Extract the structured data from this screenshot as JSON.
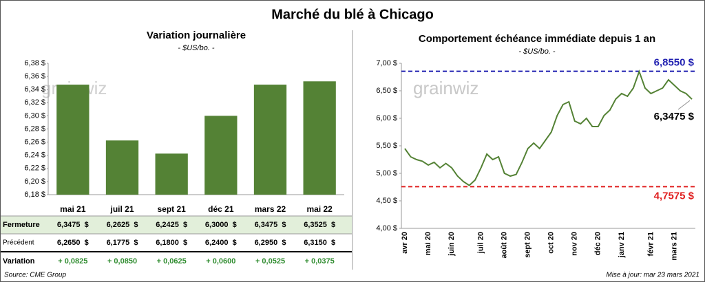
{
  "title": "Marché du blé à Chicago",
  "watermark": "grainwiz",
  "chart_data": [
    {
      "type": "bar",
      "title": "Variation journalière",
      "subtitle": "- $US/bo. -",
      "color": "#548235",
      "categories": [
        "mai 21",
        "juil 21",
        "sept 21",
        "déc 21",
        "mars 22",
        "mai 22"
      ],
      "values": [
        6.3475,
        6.2625,
        6.2425,
        6.3,
        6.3475,
        6.3525
      ],
      "ylim": [
        6.18,
        6.38
      ],
      "yticks": [
        {
          "value": 6.18,
          "label": "6,18 $"
        },
        {
          "value": 6.2,
          "label": "6,20 $"
        },
        {
          "value": 6.22,
          "label": "6,22 $"
        },
        {
          "value": 6.24,
          "label": "6,24 $"
        },
        {
          "value": 6.26,
          "label": "6,26 $"
        },
        {
          "value": 6.28,
          "label": "6,28 $"
        },
        {
          "value": 6.3,
          "label": "6,30 $"
        },
        {
          "value": 6.32,
          "label": "6,32 $"
        },
        {
          "value": 6.34,
          "label": "6,34 $"
        },
        {
          "value": 6.36,
          "label": "6,36 $"
        },
        {
          "value": 6.38,
          "label": "6,38 $"
        }
      ]
    },
    {
      "type": "line",
      "title": "Comportement  échéance immédiate depuis 1 an",
      "subtitle": "- $US/bo. -",
      "color": "#548235",
      "categories": [
        "avr 20",
        null,
        null,
        null,
        "mai 20",
        null,
        null,
        null,
        "juin 20",
        null,
        null,
        null,
        null,
        "juil 20",
        null,
        null,
        null,
        "août 20",
        null,
        null,
        null,
        "sept 20",
        null,
        null,
        null,
        "oct 20",
        null,
        null,
        null,
        "nov 20",
        null,
        null,
        null,
        "déc 20",
        null,
        null,
        null,
        "janv 21",
        null,
        null,
        null,
        null,
        "févr 21",
        null,
        null,
        null,
        "mars 21",
        null,
        null,
        null
      ],
      "values": [
        5.45,
        5.3,
        5.25,
        5.22,
        5.15,
        5.2,
        5.1,
        5.18,
        5.1,
        4.95,
        4.85,
        4.78,
        4.88,
        5.1,
        5.35,
        5.25,
        5.3,
        5.0,
        4.95,
        4.98,
        5.2,
        5.45,
        5.55,
        5.45,
        5.6,
        5.75,
        6.05,
        6.25,
        6.3,
        5.95,
        5.9,
        6.0,
        5.85,
        5.85,
        6.05,
        6.15,
        6.35,
        6.45,
        6.4,
        6.55,
        6.85,
        6.55,
        6.45,
        6.5,
        6.55,
        6.7,
        6.6,
        6.5,
        6.45,
        6.3475
      ],
      "ylim": [
        4.0,
        7.0
      ],
      "yticks": [
        {
          "value": 4.0,
          "label": "4,00 $"
        },
        {
          "value": 4.5,
          "label": "4,50 $"
        },
        {
          "value": 5.0,
          "label": "5,00 $"
        },
        {
          "value": 5.5,
          "label": "5,50 $"
        },
        {
          "value": 6.0,
          "label": "6,00 $"
        },
        {
          "value": 6.5,
          "label": "6,50 $"
        },
        {
          "value": 7.0,
          "label": "7,00 $"
        }
      ],
      "annotations": [
        {
          "value": 6.855,
          "label": "6,8550 $",
          "color": "#1f1fb0"
        },
        {
          "value": 4.7575,
          "label": "4,7575 $",
          "color": "#e02020"
        }
      ],
      "last_label": "6,3475 $"
    }
  ],
  "table": {
    "rows": [
      {
        "label": "Fermeture",
        "cells": [
          "6,3475  $",
          "6,2625  $",
          "6,2425  $",
          "6,3000  $",
          "6,3475  $",
          "6,3525  $"
        ]
      },
      {
        "label": "Précédent",
        "cells": [
          "6,2650  $",
          "6,1775  $",
          "6,1800  $",
          "6,2400  $",
          "6,2950  $",
          "6,3150  $"
        ]
      },
      {
        "label": "Variation",
        "cells": [
          "+ 0,0825",
          "+ 0,0850",
          "+ 0,0625",
          "+ 0,0600",
          "+ 0,0525",
          "+ 0,0375"
        ]
      }
    ]
  },
  "footer": {
    "source": "Source: CME Group",
    "updated": "Mise à jour: mar 23 mars 2021"
  }
}
